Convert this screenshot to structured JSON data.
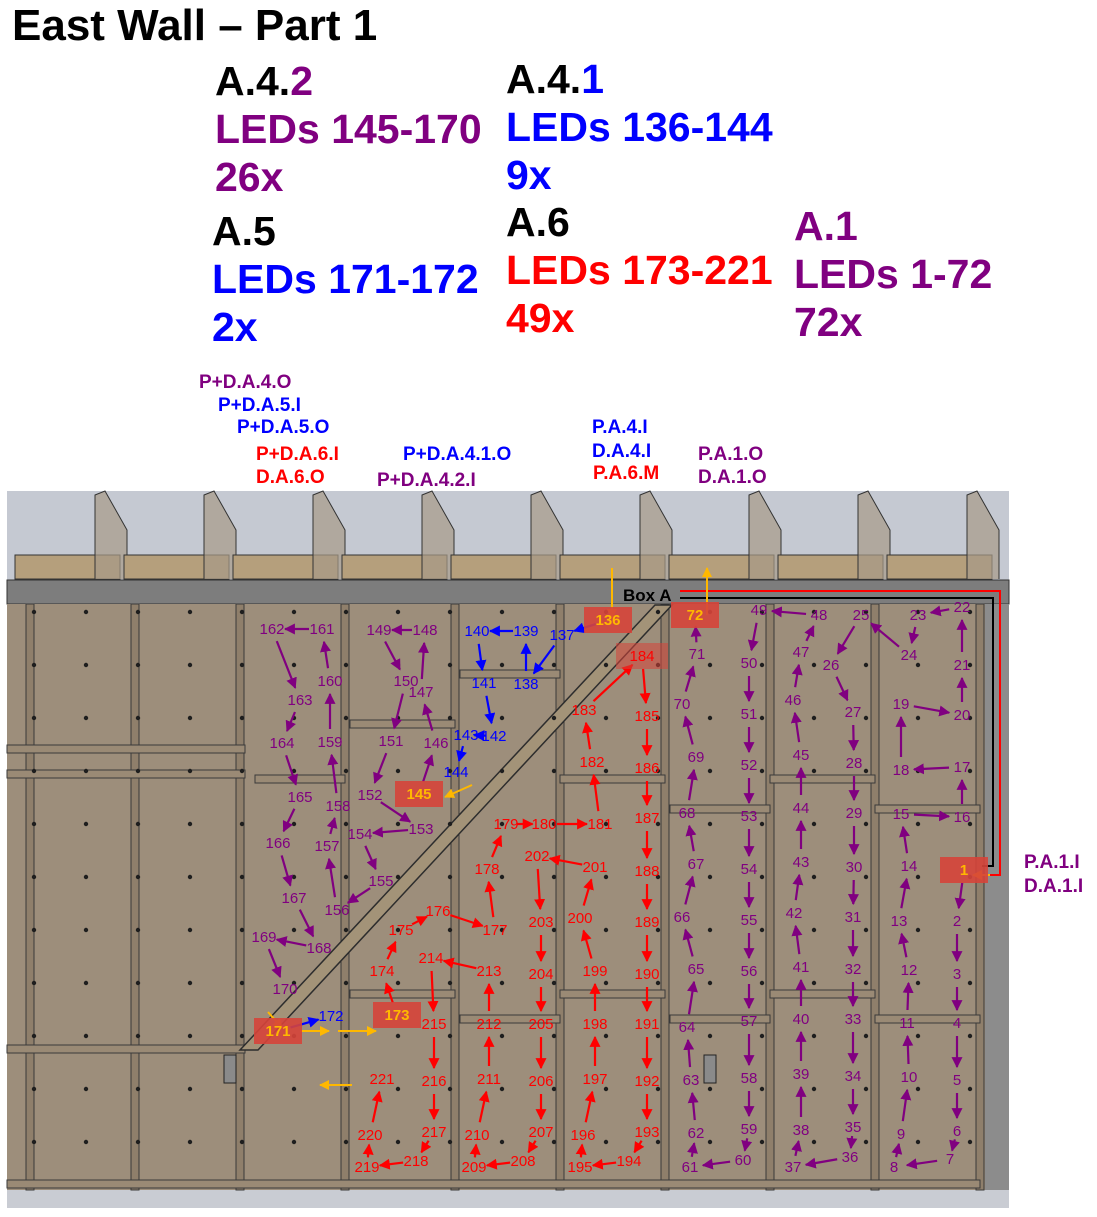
{
  "title": "East Wall – Part 1",
  "colors": {
    "purple": "#800080",
    "blue": "#0000ff",
    "red": "#ff0000",
    "orange": "#ffb800",
    "box": "#d6443a",
    "black": "#000000"
  },
  "sections": [
    {
      "id": "A.4.2",
      "prefix": "A.4.",
      "suffix": "2",
      "suffix_color": "purple",
      "prefix_color": "black",
      "leds": "LEDs 145-170",
      "count": "26x",
      "color": "purple"
    },
    {
      "id": "A.4.1",
      "prefix": "A.4.",
      "suffix": "1",
      "suffix_color": "blue",
      "prefix_color": "black",
      "leds": "LEDs 136-144",
      "count": "9x",
      "color": "blue"
    },
    {
      "id": "A.5",
      "prefix": "A.5",
      "suffix": "",
      "suffix_color": "black",
      "prefix_color": "black",
      "leds": "LEDs 171-172",
      "count": "2x",
      "color": "blue"
    },
    {
      "id": "A.6",
      "prefix": "A.6",
      "suffix": "",
      "suffix_color": "black",
      "prefix_color": "black",
      "leds": "LEDs 173-221",
      "count": "49x",
      "color": "red"
    },
    {
      "id": "A.1",
      "prefix": "A.1",
      "suffix": "",
      "suffix_color": "purple",
      "prefix_color": "purple",
      "leds": "LEDs 1-72",
      "count": "72x",
      "color": "purple"
    }
  ],
  "connectors": [
    {
      "text": "P+D.A.4.O",
      "color": "purple"
    },
    {
      "text": "P+D.A.5.I",
      "color": "blue"
    },
    {
      "text": "P+D.A.5.O",
      "color": "blue"
    },
    {
      "text": "P+D.A.6.I",
      "color": "red"
    },
    {
      "text": "D.A.6.O",
      "color": "red"
    },
    {
      "text": "P+D.A.4.1.O",
      "color": "blue"
    },
    {
      "text": "P+D.A.4.2.I",
      "color": "purple"
    },
    {
      "text": "P.A.4.I",
      "color": "blue"
    },
    {
      "text": "D.A.4.I",
      "color": "blue"
    },
    {
      "text": "P.A.6.M",
      "color": "red"
    },
    {
      "text": "P.A.1.O",
      "color": "purple"
    },
    {
      "text": "D.A.1.O",
      "color": "purple"
    },
    {
      "text": "P.A.1.I",
      "color": "purple"
    },
    {
      "text": "D.A.1.I",
      "color": "purple"
    }
  ],
  "box_label": "Box A",
  "led_chains": [
    {
      "from": 1,
      "to": 72,
      "color": "purple"
    },
    {
      "from": 136,
      "to": 144,
      "color": "blue"
    },
    {
      "from": 145,
      "to": 170,
      "color": "purple"
    },
    {
      "from": 171,
      "to": 172,
      "color": "blue"
    },
    {
      "from": 173,
      "to": 221,
      "color": "red"
    }
  ],
  "highlighted_leds": [
    "1",
    "72",
    "136",
    "145",
    "171",
    "173"
  ],
  "marked_leds": [
    "184"
  ]
}
